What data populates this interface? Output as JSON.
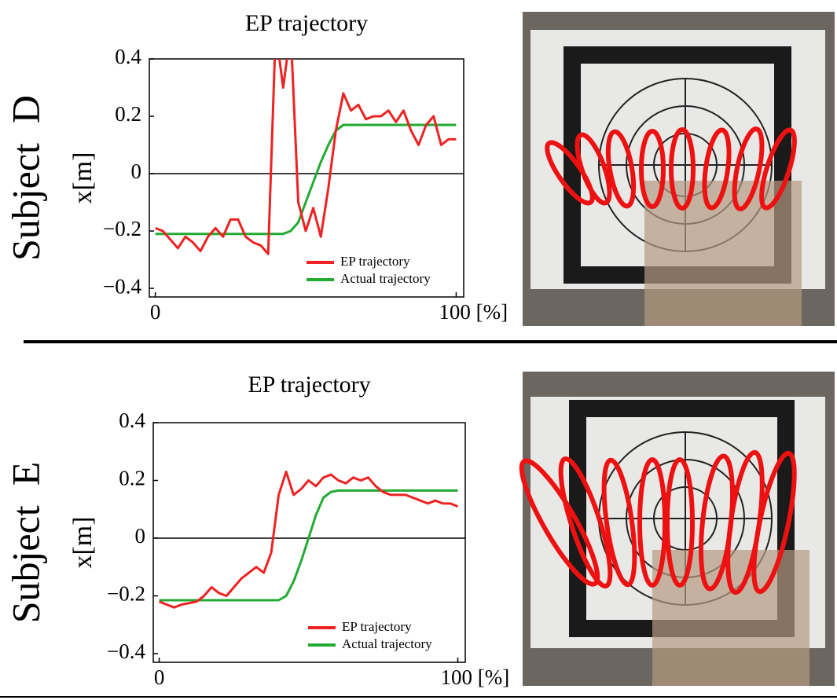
{
  "chart_data": [
    {
      "type": "line",
      "title": "EP trajectory",
      "row_label": "Subject  D",
      "ylabel": "x[m]",
      "x": [
        0,
        2.5,
        5,
        7.5,
        10,
        12.5,
        15,
        17.5,
        20,
        22.5,
        25,
        27.5,
        30,
        32.5,
        35,
        37.5,
        40,
        42.5,
        45,
        47.5,
        50,
        52.5,
        55,
        57.5,
        60,
        62.5,
        65,
        67.5,
        70,
        72.5,
        75,
        77.5,
        80,
        82.5,
        85,
        87.5,
        90,
        92.5,
        95,
        97.5,
        100
      ],
      "series": [
        {
          "name": "EP trajectory",
          "color": "#ee2222",
          "values": [
            -0.19,
            -0.2,
            -0.23,
            -0.26,
            -0.22,
            -0.24,
            -0.27,
            -0.22,
            -0.19,
            -0.22,
            -0.16,
            -0.16,
            -0.22,
            -0.24,
            -0.25,
            -0.28,
            0.5,
            0.3,
            0.5,
            -0.1,
            -0.2,
            -0.12,
            -0.22,
            -0.05,
            0.15,
            0.28,
            0.22,
            0.24,
            0.19,
            0.2,
            0.2,
            0.22,
            0.18,
            0.22,
            0.15,
            0.1,
            0.17,
            0.2,
            0.1,
            0.12,
            0.12
          ]
        },
        {
          "name": "Actual trajectory",
          "color": "#22aa33",
          "values": [
            -0.21,
            -0.21,
            -0.21,
            -0.21,
            -0.21,
            -0.21,
            -0.21,
            -0.21,
            -0.21,
            -0.21,
            -0.21,
            -0.21,
            -0.21,
            -0.21,
            -0.21,
            -0.21,
            -0.21,
            -0.21,
            -0.2,
            -0.17,
            -0.1,
            -0.03,
            0.04,
            0.1,
            0.15,
            0.17,
            0.17,
            0.17,
            0.17,
            0.17,
            0.17,
            0.17,
            0.17,
            0.17,
            0.17,
            0.17,
            0.17,
            0.17,
            0.17,
            0.17,
            0.17
          ]
        }
      ],
      "xlim": [
        -2,
        102.5
      ],
      "ylim": [
        -0.43,
        0.4
      ],
      "xticks": [
        0,
        {
          "value": 100,
          "label": "100 [%]"
        }
      ],
      "yticks": [
        {
          "value": -0.4,
          "label": "−0.4"
        },
        {
          "value": -0.2,
          "label": "−0.2"
        },
        0,
        0.2,
        0.4
      ],
      "axhline": 0,
      "legend": "lower right"
    },
    {
      "type": "line",
      "title": "EP trajectory",
      "row_label": "Subject  E",
      "ylabel": "x[m]",
      "x": [
        0,
        2.5,
        5,
        7.5,
        10,
        12.5,
        15,
        17.5,
        20,
        22.5,
        25,
        27.5,
        30,
        32.5,
        35,
        37.5,
        40,
        42.5,
        45,
        47.5,
        50,
        52.5,
        55,
        57.5,
        60,
        62.5,
        65,
        67.5,
        70,
        72.5,
        75,
        77.5,
        80,
        82.5,
        85,
        87.5,
        90,
        92.5,
        95,
        97.5,
        100
      ],
      "series": [
        {
          "name": "EP trajectory",
          "color": "#ee2222",
          "values": [
            -0.22,
            -0.23,
            -0.24,
            -0.23,
            -0.225,
            -0.22,
            -0.2,
            -0.17,
            -0.19,
            -0.2,
            -0.17,
            -0.14,
            -0.12,
            -0.1,
            -0.12,
            -0.05,
            0.15,
            0.23,
            0.15,
            0.17,
            0.2,
            0.18,
            0.21,
            0.22,
            0.2,
            0.19,
            0.21,
            0.2,
            0.21,
            0.18,
            0.16,
            0.15,
            0.15,
            0.15,
            0.14,
            0.13,
            0.12,
            0.13,
            0.12,
            0.12,
            0.11
          ]
        },
        {
          "name": "Actual trajectory",
          "color": "#22aa33",
          "values": [
            -0.215,
            -0.215,
            -0.215,
            -0.215,
            -0.215,
            -0.215,
            -0.215,
            -0.215,
            -0.215,
            -0.215,
            -0.215,
            -0.215,
            -0.215,
            -0.215,
            -0.215,
            -0.215,
            -0.215,
            -0.2,
            -0.15,
            -0.08,
            0.0,
            0.08,
            0.14,
            0.16,
            0.165,
            0.165,
            0.165,
            0.165,
            0.165,
            0.165,
            0.165,
            0.165,
            0.165,
            0.165,
            0.165,
            0.165,
            0.165,
            0.165,
            0.165,
            0.165,
            0.165
          ]
        }
      ],
      "xlim": [
        -2,
        102.5
      ],
      "ylim": [
        -0.43,
        0.4
      ],
      "xticks": [
        0,
        {
          "value": 100,
          "label": "100 [%]"
        }
      ],
      "yticks": [
        {
          "value": -0.4,
          "label": "−0.4"
        },
        {
          "value": -0.2,
          "label": "−0.2"
        },
        0,
        0.2,
        0.4
      ],
      "axhline": 0,
      "legend": "lower right"
    }
  ]
}
